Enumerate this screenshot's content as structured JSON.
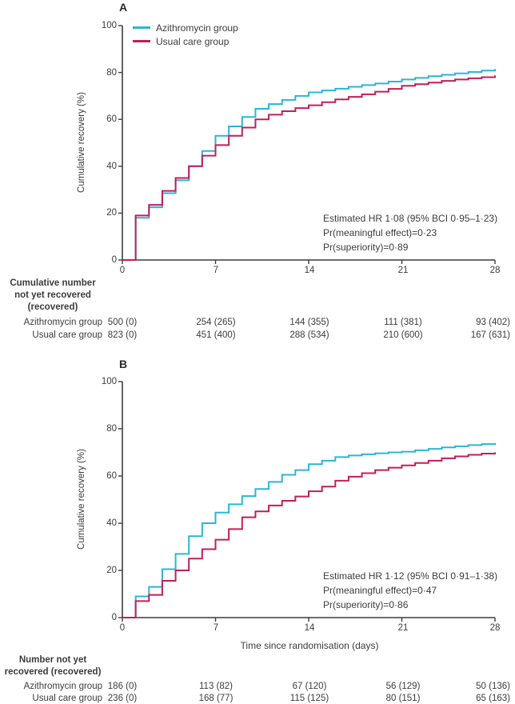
{
  "accent_colors": {
    "azithromycin_line": "#2cb5d8",
    "usual_care_line": "#c11f59",
    "axis_and_text": "#3c3c3c"
  },
  "figure": {
    "panelA": {
      "label": "A",
      "ylabel": "Cumulative recovery (%)",
      "yticks": [
        "0",
        "20",
        "40",
        "60",
        "80",
        "100"
      ],
      "xticks": [
        "0",
        "7",
        "14",
        "21",
        "28"
      ],
      "legend": [
        {
          "label": "Azithromycin group"
        },
        {
          "label": "Usual care group"
        }
      ],
      "annotation": {
        "line1": "Estimated HR 1·08 (95% BCI 0·95–1·23)",
        "line2": "Pr(meaningful effect)=0·23",
        "line3": "Pr(superiority)=0·89"
      },
      "table": {
        "header": {
          "line1": "Cumulative number",
          "line2": "not yet recovered",
          "line3": "(recovered)"
        },
        "rows": [
          {
            "label": "Azithromycin group",
            "c0": "500 (0)",
            "c1": "254 (265)",
            "c2": "144 (355)",
            "c3": "111 (381)",
            "c4": "93 (402)"
          },
          {
            "label": "Usual care group",
            "c0": "823 (0)",
            "c1": "451 (400)",
            "c2": "288 (534)",
            "c3": "210 (600)",
            "c4": "167 (631)"
          }
        ]
      }
    },
    "panelB": {
      "label": "B",
      "ylabel": "Cumulative recovery (%)",
      "xlabel": "Time since randomisation (days)",
      "yticks": [
        "0",
        "20",
        "40",
        "60",
        "80",
        "100"
      ],
      "xticks": [
        "0",
        "7",
        "14",
        "21",
        "28"
      ],
      "annotation": {
        "line1": "Estimated HR 1·12 (95% BCI 0·91–1·38)",
        "line2": "Pr(meaningful effect)=0·47",
        "line3": "Pr(superiority)=0·86"
      },
      "table": {
        "header": {
          "line1": "Number not yet",
          "line2": "recovered (recovered)"
        },
        "rows": [
          {
            "label": "Azithromycin group",
            "c0": "186 (0)",
            "c1": "113 (82)",
            "c2": "67 (120)",
            "c3": "56 (129)",
            "c4": "50 (136)"
          },
          {
            "label": "Usual care group",
            "c0": "236 (0)",
            "c1": "168 (77)",
            "c2": "115 (125)",
            "c3": "80 (151)",
            "c4": "65 (163)"
          }
        ]
      }
    }
  },
  "chart_data": [
    {
      "type": "line",
      "subtype": "step-post",
      "panel": "A",
      "title": "",
      "xlabel": "",
      "ylabel": "Cumulative recovery (%)",
      "xlim": [
        0,
        28
      ],
      "ylim": [
        0,
        100
      ],
      "xticks": [
        0,
        7,
        14,
        21,
        28
      ],
      "yticks": [
        0,
        20,
        40,
        60,
        80,
        100
      ],
      "legend_position": "top-left",
      "grid": false,
      "x": [
        0,
        1,
        2,
        3,
        4,
        5,
        6,
        7,
        8,
        9,
        10,
        11,
        12,
        13,
        14,
        15,
        16,
        17,
        18,
        19,
        20,
        21,
        22,
        23,
        24,
        25,
        26,
        27,
        28
      ],
      "series": [
        {
          "name": "Azithromycin group",
          "color": "#2cb5d8",
          "values": [
            0,
            18,
            22.5,
            28.5,
            34,
            40,
            46.5,
            53,
            57,
            61,
            64.5,
            66.5,
            68.3,
            70,
            71.5,
            72.3,
            73.1,
            73.9,
            74.6,
            75.3,
            76.1,
            77,
            77.7,
            78.4,
            79,
            79.6,
            80.2,
            80.8,
            81.5
          ]
        },
        {
          "name": "Usual care group",
          "color": "#c11f59",
          "values": [
            0,
            19,
            23.5,
            29.5,
            35,
            40,
            44.5,
            49,
            53,
            56.5,
            60,
            62,
            63.5,
            64.8,
            66,
            67.3,
            68.5,
            69.6,
            70.7,
            71.8,
            73,
            74.3,
            75,
            75.7,
            76.4,
            77,
            77.5,
            78,
            78.7
          ]
        }
      ],
      "annotation": [
        "Estimated HR 1·08 (95% BCI 0·95–1·23)",
        "Pr(meaningful effect)=0·23",
        "Pr(superiority)=0·89"
      ],
      "risk_table": {
        "header": "Cumulative number not yet recovered (recovered)",
        "times": [
          0,
          7,
          14,
          21,
          28
        ],
        "rows": [
          {
            "name": "Azithromycin group",
            "values": [
              "500 (0)",
              "254 (265)",
              "144 (355)",
              "111 (381)",
              "93 (402)"
            ]
          },
          {
            "name": "Usual care group",
            "values": [
              "823 (0)",
              "451 (400)",
              "288 (534)",
              "210 (600)",
              "167 (631)"
            ]
          }
        ]
      }
    },
    {
      "type": "line",
      "subtype": "step-post",
      "panel": "B",
      "title": "",
      "xlabel": "Time since randomisation (days)",
      "ylabel": "Cumulative recovery (%)",
      "xlim": [
        0,
        28
      ],
      "ylim": [
        0,
        100
      ],
      "xticks": [
        0,
        7,
        14,
        21,
        28
      ],
      "yticks": [
        0,
        20,
        40,
        60,
        80,
        100
      ],
      "legend_position": "none",
      "grid": false,
      "x": [
        0,
        1,
        2,
        3,
        4,
        5,
        6,
        7,
        8,
        9,
        10,
        11,
        12,
        13,
        14,
        15,
        16,
        17,
        18,
        19,
        20,
        21,
        22,
        23,
        24,
        25,
        26,
        27,
        28
      ],
      "series": [
        {
          "name": "Azithromycin group",
          "color": "#2cb5d8",
          "values": [
            0,
            9,
            13,
            20.5,
            27,
            34.5,
            40,
            44.5,
            48,
            51.5,
            54.5,
            57.5,
            60.5,
            62.5,
            65,
            66.5,
            68,
            68.7,
            69.2,
            69.6,
            70,
            70.3,
            70.9,
            71.5,
            72.1,
            72.6,
            73.1,
            73.5,
            74
          ]
        },
        {
          "name": "Usual care group",
          "color": "#c11f59",
          "values": [
            0,
            7,
            9.6,
            15.6,
            20,
            25,
            29,
            33,
            37.5,
            42.5,
            45,
            47.5,
            49.5,
            51.3,
            53.5,
            55.5,
            58,
            59.7,
            61.2,
            62.5,
            63.5,
            64.5,
            65.5,
            66.5,
            67.5,
            68.3,
            69,
            69.5,
            70
          ]
        }
      ],
      "annotation": [
        "Estimated HR 1·12 (95% BCI 0·91–1·38)",
        "Pr(meaningful effect)=0·47",
        "Pr(superiority)=0·86"
      ],
      "risk_table": {
        "header": "Number not yet recovered (recovered)",
        "times": [
          0,
          7,
          14,
          21,
          28
        ],
        "rows": [
          {
            "name": "Azithromycin group",
            "values": [
              "186 (0)",
              "113 (82)",
              "67 (120)",
              "56 (129)",
              "50 (136)"
            ]
          },
          {
            "name": "Usual care group",
            "values": [
              "236 (0)",
              "168 (77)",
              "115 (125)",
              "80 (151)",
              "65 (163)"
            ]
          }
        ]
      }
    }
  ]
}
